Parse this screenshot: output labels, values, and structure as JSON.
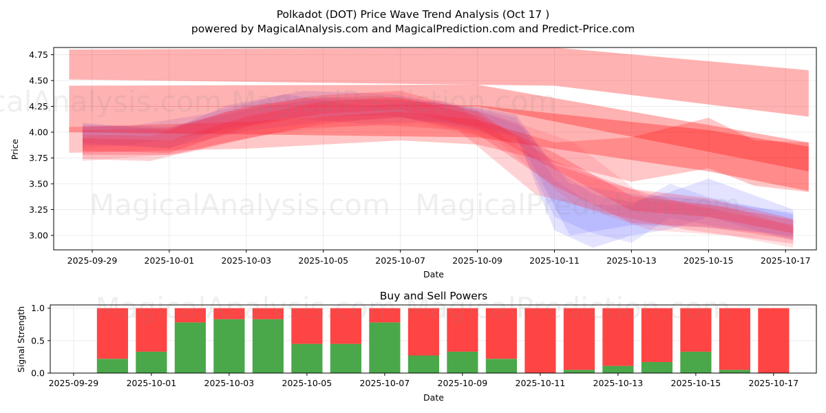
{
  "chart_data": [
    {
      "type": "area",
      "title_line1": "Polkadot (DOT) Price Wave Trend Analysis (Oct 17 )",
      "title_line2": "powered by MagicalAnalysis.com and MagicalPrediction.com and Predict-Price.com",
      "xlabel": "Date",
      "ylabel": "Price",
      "xlim": [
        -1.0,
        18.8
      ],
      "ylim": [
        2.86,
        4.82
      ],
      "grid": true,
      "x_tick_labels": [
        "2025-09-29",
        "2025-10-01",
        "2025-10-03",
        "2025-10-05",
        "2025-10-07",
        "2025-10-09",
        "2025-10-11",
        "2025-10-13",
        "2025-10-15",
        "2025-10-17"
      ],
      "x_tick_positions": [
        0,
        2,
        4,
        6,
        8,
        10,
        12,
        14,
        16,
        18
      ],
      "y_ticks": [
        3.0,
        3.25,
        3.5,
        3.75,
        4.0,
        4.25,
        4.5,
        4.75
      ],
      "y_tick_labels": [
        "3.00",
        "3.25",
        "3.50",
        "3.75",
        "4.00",
        "4.25",
        "4.50",
        "4.75"
      ],
      "series": [
        {
          "name": "blue-wave-1",
          "color": "#6666ff",
          "opacity": 0.18,
          "x": [
            -0.25,
            2,
            4,
            6,
            8,
            10,
            11,
            12,
            13,
            14,
            15,
            16,
            18.2
          ],
          "upper": [
            4.07,
            4.05,
            4.22,
            4.33,
            4.31,
            4.24,
            4.17,
            3.65,
            3.4,
            3.32,
            3.42,
            3.55,
            3.25
          ],
          "lower": [
            3.88,
            3.85,
            4.01,
            4.1,
            4.14,
            4.06,
            3.97,
            3.05,
            2.88,
            3.0,
            3.06,
            3.18,
            2.95
          ]
        },
        {
          "name": "blue-wave-2",
          "color": "#6666ff",
          "opacity": 0.16,
          "x": [
            -0.25,
            1,
            3,
            5,
            7,
            9,
            11,
            12,
            13,
            14,
            15,
            16,
            18.2
          ],
          "upper": [
            4.05,
            4.06,
            4.18,
            4.37,
            4.25,
            4.31,
            4.14,
            3.54,
            3.3,
            3.29,
            3.5,
            3.37,
            3.2
          ],
          "lower": [
            3.85,
            3.88,
            3.98,
            4.14,
            4.08,
            4.1,
            3.95,
            3.18,
            3.02,
            2.93,
            3.17,
            3.1,
            2.98
          ]
        },
        {
          "name": "blue-wave-3",
          "color": "#6666ff",
          "opacity": 0.18,
          "x": [
            -0.25,
            2,
            3.5,
            5.5,
            7.8,
            10,
            11.2,
            12.4,
            14,
            15.8,
            18.2
          ],
          "upper": [
            4.09,
            4.02,
            4.26,
            4.4,
            4.37,
            4.21,
            4.05,
            3.5,
            3.4,
            3.35,
            3.22
          ],
          "lower": [
            3.9,
            3.84,
            4.05,
            4.15,
            4.16,
            4.01,
            3.85,
            3.0,
            3.1,
            3.08,
            3.0
          ]
        },
        {
          "name": "red-wave-1",
          "color": "#ff0000",
          "opacity": 0.3,
          "x": [
            -0.6,
            12,
            18.6
          ],
          "upper": [
            4.8,
            4.82,
            4.6
          ],
          "lower": [
            4.51,
            4.45,
            4.15
          ]
        },
        {
          "name": "red-wave-2",
          "color": "#ff0000",
          "opacity": 0.3,
          "x": [
            -0.6,
            10,
            18.6
          ],
          "upper": [
            4.45,
            4.46,
            3.9
          ],
          "lower": [
            4.25,
            4.25,
            3.62
          ]
        },
        {
          "name": "red-wave-3",
          "color": "#ff0000",
          "opacity": 0.3,
          "x": [
            -0.6,
            10,
            16,
            18.6
          ],
          "upper": [
            4.25,
            4.26,
            4.02,
            3.86
          ],
          "lower": [
            4.0,
            3.95,
            3.62,
            3.43
          ]
        },
        {
          "name": "red-wave-4",
          "color": "#ff0000",
          "opacity": 0.22,
          "x": [
            -0.6,
            4,
            8,
            10,
            12,
            14,
            16,
            17.2,
            18.6
          ],
          "upper": [
            4.05,
            4.1,
            4.2,
            4.12,
            3.9,
            3.95,
            4.14,
            3.92,
            3.9
          ],
          "lower": [
            3.8,
            3.84,
            3.92,
            3.88,
            3.7,
            3.52,
            3.65,
            3.48,
            3.42
          ]
        },
        {
          "name": "red-wave-5",
          "color": "#ff2233",
          "opacity": 0.22,
          "x": [
            -0.25,
            2,
            4,
            6,
            8,
            10,
            12,
            14,
            16,
            18.2
          ],
          "upper": [
            4.02,
            4.04,
            4.25,
            4.36,
            4.4,
            4.2,
            3.72,
            3.45,
            3.36,
            3.16
          ],
          "lower": [
            3.78,
            3.78,
            3.94,
            4.08,
            4.15,
            3.98,
            3.48,
            3.12,
            3.08,
            2.96
          ]
        },
        {
          "name": "red-wave-6",
          "color": "#ff2233",
          "opacity": 0.2,
          "x": [
            -0.25,
            1.5,
            3.5,
            5.5,
            7.5,
            9.5,
            11.5,
            13.5,
            15.5,
            18.2
          ],
          "upper": [
            3.98,
            3.96,
            4.2,
            4.33,
            4.35,
            4.25,
            3.75,
            3.5,
            3.3,
            3.1
          ],
          "lower": [
            3.74,
            3.72,
            3.9,
            4.04,
            4.07,
            4.02,
            3.4,
            3.2,
            3.05,
            2.92
          ]
        },
        {
          "name": "red-wave-7",
          "color": "#ff4455",
          "opacity": 0.16,
          "x": [
            -0.25,
            2.5,
            4.5,
            6.5,
            8.5,
            10.5,
            12.5,
            14.5,
            16.5,
            18.2
          ],
          "upper": [
            3.95,
            4.05,
            4.28,
            4.3,
            4.32,
            4.16,
            3.9,
            3.33,
            3.28,
            3.08
          ],
          "lower": [
            3.72,
            3.8,
            3.98,
            4.05,
            4.08,
            3.92,
            3.3,
            3.05,
            3.0,
            2.88
          ]
        },
        {
          "name": "red-wave-8",
          "color": "#ff2233",
          "opacity": 0.25,
          "x": [
            -0.25,
            2,
            4,
            6,
            8,
            10,
            12,
            14,
            16,
            18.2
          ],
          "upper": [
            3.94,
            3.92,
            4.15,
            4.3,
            4.34,
            4.16,
            3.8,
            3.38,
            3.3,
            3.15
          ],
          "lower": [
            3.82,
            3.8,
            4.05,
            4.18,
            4.22,
            4.04,
            3.64,
            3.24,
            3.18,
            3.02
          ]
        }
      ]
    },
    {
      "type": "bar",
      "title": "Buy and Sell Powers",
      "xlabel": "Date",
      "ylabel": "Signal Strength",
      "xlim": [
        -0.6,
        19.1
      ],
      "ylim": [
        0,
        1.05
      ],
      "grid": true,
      "x_tick_labels": [
        "2025-09-29",
        "2025-10-01",
        "2025-10-03",
        "2025-10-05",
        "2025-10-07",
        "2025-10-09",
        "2025-10-11",
        "2025-10-13",
        "2025-10-15",
        "2025-10-17"
      ],
      "x_tick_positions": [
        0,
        2,
        4,
        6,
        8,
        10,
        12,
        14,
        16,
        18
      ],
      "y_ticks": [
        0,
        0.5,
        1.0
      ],
      "y_tick_labels": [
        "0.0",
        "0.5",
        "1.0"
      ],
      "categories": [
        "2025-09-30",
        "2025-10-01",
        "2025-10-02",
        "2025-10-03",
        "2025-10-04",
        "2025-10-05",
        "2025-10-06",
        "2025-10-07",
        "2025-10-08",
        "2025-10-09",
        "2025-10-10",
        "2025-10-11",
        "2025-10-12",
        "2025-10-13",
        "2025-10-14",
        "2025-10-15",
        "2025-10-16",
        "2025-10-17"
      ],
      "bar_positions": [
        1,
        2,
        3,
        4,
        5,
        6,
        7,
        8,
        9,
        10,
        11,
        12,
        13,
        14,
        15,
        16,
        17,
        18
      ],
      "series": [
        {
          "name": "Buy Power",
          "color": "#4aa84a",
          "values": [
            0.22,
            0.33,
            0.78,
            0.83,
            0.83,
            0.45,
            0.45,
            0.78,
            0.27,
            0.33,
            0.22,
            0.0,
            0.05,
            0.11,
            0.17,
            0.33,
            0.05,
            0.0
          ]
        },
        {
          "name": "Sell Power",
          "color": "#ff4444",
          "values": [
            0.78,
            0.67,
            0.22,
            0.17,
            0.17,
            0.55,
            0.55,
            0.22,
            0.73,
            0.67,
            0.78,
            1.0,
            0.95,
            0.89,
            0.83,
            0.67,
            0.95,
            1.0
          ]
        }
      ]
    }
  ],
  "watermarks": {
    "top_row": "MagicalAnalysis.com   MagicalPrediction.com",
    "middle_row_left": "MagicalAnalysis.com",
    "middle_row_right": "MagicalPrediction.com",
    "bottom_row": "MagicalAnalysis.com   MagicalPrediction.com"
  }
}
